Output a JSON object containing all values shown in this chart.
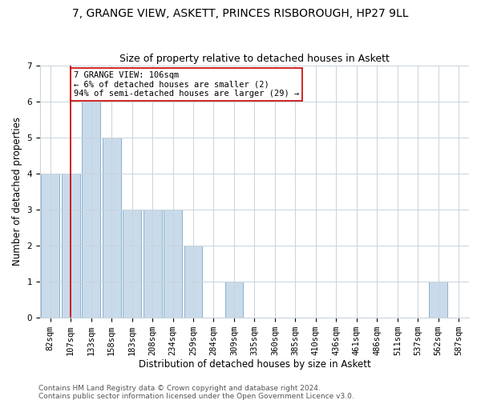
{
  "title1": "7, GRANGE VIEW, ASKETT, PRINCES RISBOROUGH, HP27 9LL",
  "title2": "Size of property relative to detached houses in Askett",
  "xlabel": "Distribution of detached houses by size in Askett",
  "ylabel": "Number of detached properties",
  "categories": [
    "82sqm",
    "107sqm",
    "133sqm",
    "158sqm",
    "183sqm",
    "208sqm",
    "234sqm",
    "259sqm",
    "284sqm",
    "309sqm",
    "335sqm",
    "360sqm",
    "385sqm",
    "410sqm",
    "436sqm",
    "461sqm",
    "486sqm",
    "511sqm",
    "537sqm",
    "562sqm",
    "587sqm"
  ],
  "values": [
    4,
    4,
    6,
    5,
    3,
    3,
    3,
    2,
    0,
    1,
    0,
    0,
    0,
    0,
    0,
    0,
    0,
    0,
    0,
    1,
    0
  ],
  "bar_color": "#c9daea",
  "bar_edge_color": "#7aaac7",
  "vline_x": 1,
  "vline_color": "#cc0000",
  "annotation_text": "7 GRANGE VIEW: 106sqm\n← 6% of detached houses are smaller (2)\n94% of semi-detached houses are larger (29) →",
  "annotation_box_color": "#cc0000",
  "annotation_text_color": "#000000",
  "ylim": [
    0,
    7
  ],
  "yticks": [
    0,
    1,
    2,
    3,
    4,
    5,
    6,
    7
  ],
  "footer1": "Contains HM Land Registry data © Crown copyright and database right 2024.",
  "footer2": "Contains public sector information licensed under the Open Government Licence v3.0.",
  "bg_color": "#ffffff",
  "grid_color": "#c8d4dc",
  "title1_fontsize": 10,
  "title2_fontsize": 9,
  "axis_label_fontsize": 8.5,
  "tick_fontsize": 7.5,
  "footer_fontsize": 6.5,
  "annotation_fontsize": 7.5
}
